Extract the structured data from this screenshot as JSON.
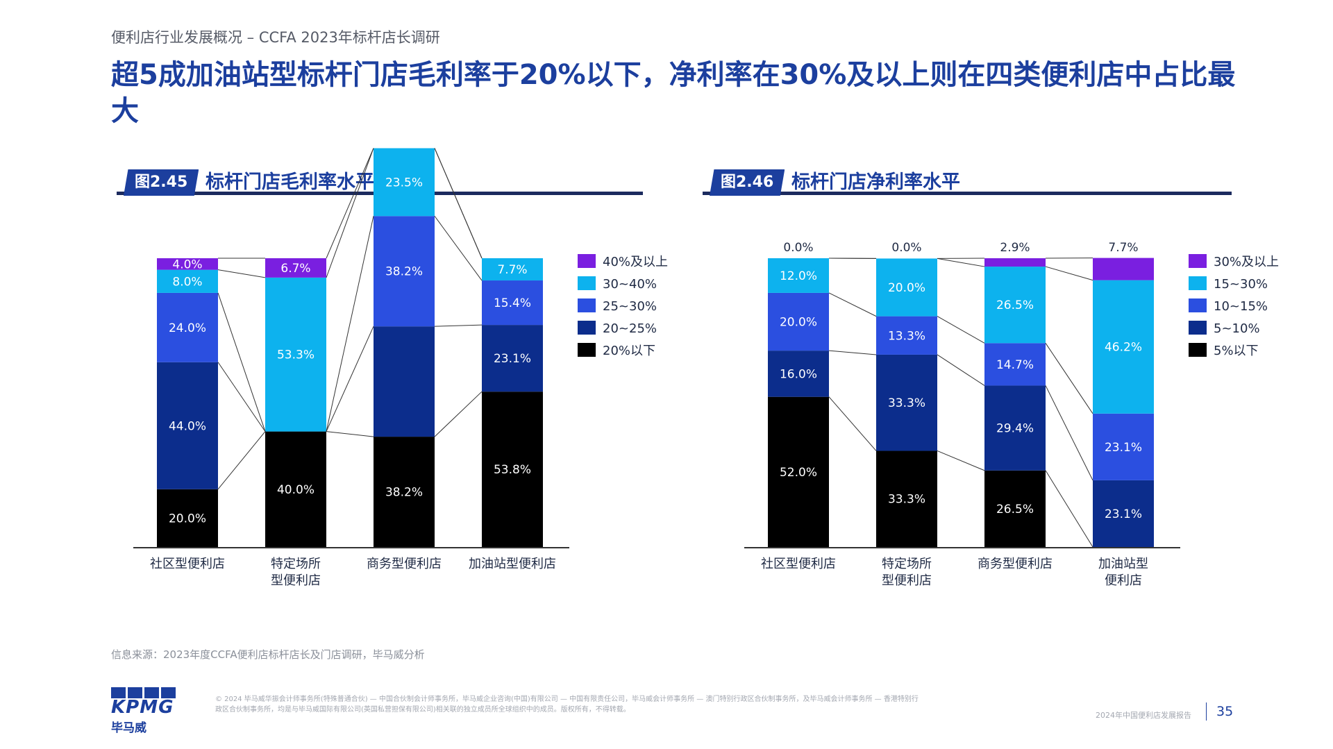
{
  "page": {
    "subtitle": "便利店行业发展概况 – CCFA 2023年标杆店长调研",
    "title": "超5成加油站型标杆门店毛利率于20%以下，净利率在30%及以上则在四类便利店中占比最大",
    "source": "信息来源：2023年度CCFA便利店标杆店长及门店调研，毕马威分析",
    "legal": "© 2024 毕马威华振会计师事务所(特殊普通合伙) — 中国合伙制会计师事务所，毕马威企业咨询(中国)有限公司 — 中国有限责任公司，毕马威会计师事务所 — 澳门特别行政区合伙制事务所，及毕马威会计师事务所 — 香港特别行政区合伙制事务所，均是与毕马威国际有限公司(英国私营担保有限公司)相关联的独立成员所全球组织中的成员。版权所有，不得转载。",
    "report_name": "2024年中国便利店发展报告",
    "page_number": "35",
    "logo_word": "KPMG",
    "logo_cn": "毕马威"
  },
  "figures": [
    {
      "tag": "图2.45",
      "title": "标杆门店毛利率水平"
    },
    {
      "tag": "图2.46",
      "title": "标杆门店净利率水平"
    }
  ],
  "chart_data": [
    {
      "type": "bar",
      "stacked": true,
      "percent": true,
      "categories": [
        [
          "社区型便利店"
        ],
        [
          "特定场所",
          "型便利店"
        ],
        [
          "商务型便利店"
        ],
        [
          "加油站型便利店"
        ]
      ],
      "series": [
        {
          "name": "20%以下",
          "color": "#000000",
          "text_color": "#ffffff",
          "values": [
            20.0,
            40.0,
            38.2,
            53.8
          ],
          "labels": [
            "20.0%",
            "40.0%",
            "38.2%",
            "53.8%"
          ]
        },
        {
          "name": "20~25%",
          "color": "#0c2d8c",
          "text_color": "#ffffff",
          "values": [
            44.0,
            0,
            38.2,
            23.1
          ],
          "labels": [
            "44.0%",
            "",
            "",
            "23.1%"
          ]
        },
        {
          "name": "25~30%",
          "color": "#2b4fe0",
          "text_color": "#ffffff",
          "values": [
            24.0,
            0,
            38.2,
            15.4
          ],
          "labels": [
            "24.0%",
            "",
            "38.2%",
            "15.4%"
          ]
        },
        {
          "name": "30~40%",
          "color": "#0db2ee",
          "text_color": "#ffffff",
          "values": [
            8.0,
            53.3,
            23.5,
            7.7
          ],
          "labels": [
            "8.0%",
            "53.3%",
            "23.5%",
            "7.7%"
          ]
        },
        {
          "name": "40%及以上",
          "color": "#7a1fe0",
          "text_color": "#ffffff",
          "values": [
            4.0,
            6.7,
            0,
            0
          ],
          "labels": [
            "4.0%",
            "6.7%",
            "",
            ""
          ]
        }
      ],
      "legend_position": "right",
      "connector_lines": true
    },
    {
      "type": "bar",
      "stacked": true,
      "percent": true,
      "categories": [
        [
          "社区型便利店"
        ],
        [
          "特定场所",
          "型便利店"
        ],
        [
          "商务型便利店"
        ],
        [
          "加油站型",
          "便利店"
        ]
      ],
      "series": [
        {
          "name": "5%以下",
          "color": "#000000",
          "text_color": "#ffffff",
          "values": [
            52.0,
            33.3,
            26.5,
            0
          ],
          "labels": [
            "52.0%",
            "33.3%",
            "26.5%",
            ""
          ]
        },
        {
          "name": "5~10%",
          "color": "#0c2d8c",
          "text_color": "#ffffff",
          "values": [
            16.0,
            33.3,
            29.4,
            23.1
          ],
          "labels": [
            "16.0%",
            "33.3%",
            "29.4%",
            "23.1%"
          ]
        },
        {
          "name": "10~15%",
          "color": "#2b4fe0",
          "text_color": "#ffffff",
          "values": [
            20.0,
            13.3,
            14.7,
            23.1
          ],
          "labels": [
            "20.0%",
            "13.3%",
            "14.7%",
            "23.1%"
          ]
        },
        {
          "name": "15~30%",
          "color": "#0db2ee",
          "text_color": "#ffffff",
          "values": [
            12.0,
            20.0,
            26.5,
            46.2
          ],
          "labels": [
            "12.0%",
            "20.0%",
            "26.5%",
            "46.2%"
          ]
        },
        {
          "name": "30%及以上",
          "color": "#7a1fe0",
          "text_color": "#ffffff",
          "values": [
            0.0,
            0.0,
            2.9,
            7.7
          ],
          "labels": [
            "",
            "",
            "",
            ""
          ]
        }
      ],
      "top_labels": [
        "0.0%",
        "0.0%",
        "2.9%",
        "7.7%"
      ],
      "legend_position": "right",
      "connector_lines": true
    }
  ]
}
